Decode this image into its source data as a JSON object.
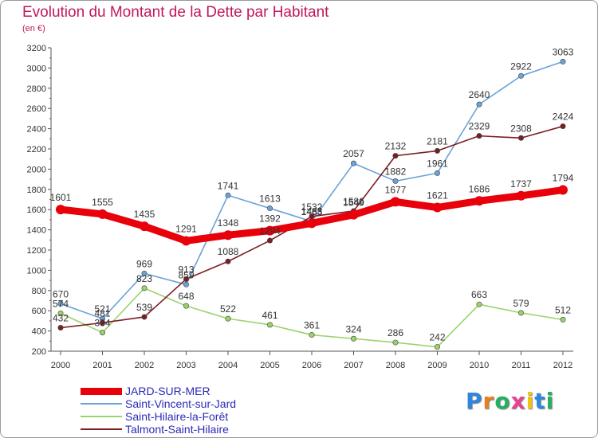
{
  "chart_data": {
    "type": "line",
    "title": "Evolution du Montant de la Dette par Habitant",
    "subtitle": "(en €)",
    "x": [
      "2000",
      "2001",
      "2002",
      "2003",
      "2004",
      "2005",
      "2006",
      "2007",
      "2008",
      "2009",
      "2010",
      "2011",
      "2012"
    ],
    "ylim": [
      200,
      3200
    ],
    "yticks": [
      200,
      400,
      600,
      800,
      1000,
      1200,
      1400,
      1600,
      1800,
      2000,
      2200,
      2400,
      2600,
      2800,
      3000,
      3200
    ],
    "grid": false,
    "legend_position": "bottom-left",
    "series": [
      {
        "name": "JARD-SUR-MER",
        "color": "#e8000b",
        "values": [
          1601,
          1555,
          1435,
          1291,
          1348,
          1392,
          1465,
          1549,
          1677,
          1621,
          1686,
          1737,
          1794
        ]
      },
      {
        "name": "Saint-Vincent-sur-Jard",
        "color": "#6ba3d6",
        "values": [
          670,
          521,
          969,
          859,
          1741,
          1613,
          1483,
          2057,
          1882,
          1961,
          2640,
          2922,
          3063
        ]
      },
      {
        "name": "Saint-Hilaire-la-Forêt",
        "color": "#9ad36a",
        "values": [
          574,
          384,
          823,
          648,
          522,
          461,
          361,
          324,
          286,
          242,
          663,
          579,
          512
        ]
      },
      {
        "name": "Talmont-Saint-Hilaire",
        "color": "#7b1e24",
        "values": [
          432,
          481,
          539,
          913,
          1088,
          1294,
          1532,
          1586,
          2132,
          2181,
          2329,
          2308,
          2424
        ]
      }
    ]
  },
  "brand": {
    "letters": [
      "P",
      "r",
      "o",
      "x",
      "i",
      "t",
      "i"
    ],
    "colors": [
      "#2e86de",
      "#e67e22",
      "#27ae60",
      "#e84393",
      "#f1c40f",
      "#2e86de",
      "#27ae60"
    ]
  }
}
